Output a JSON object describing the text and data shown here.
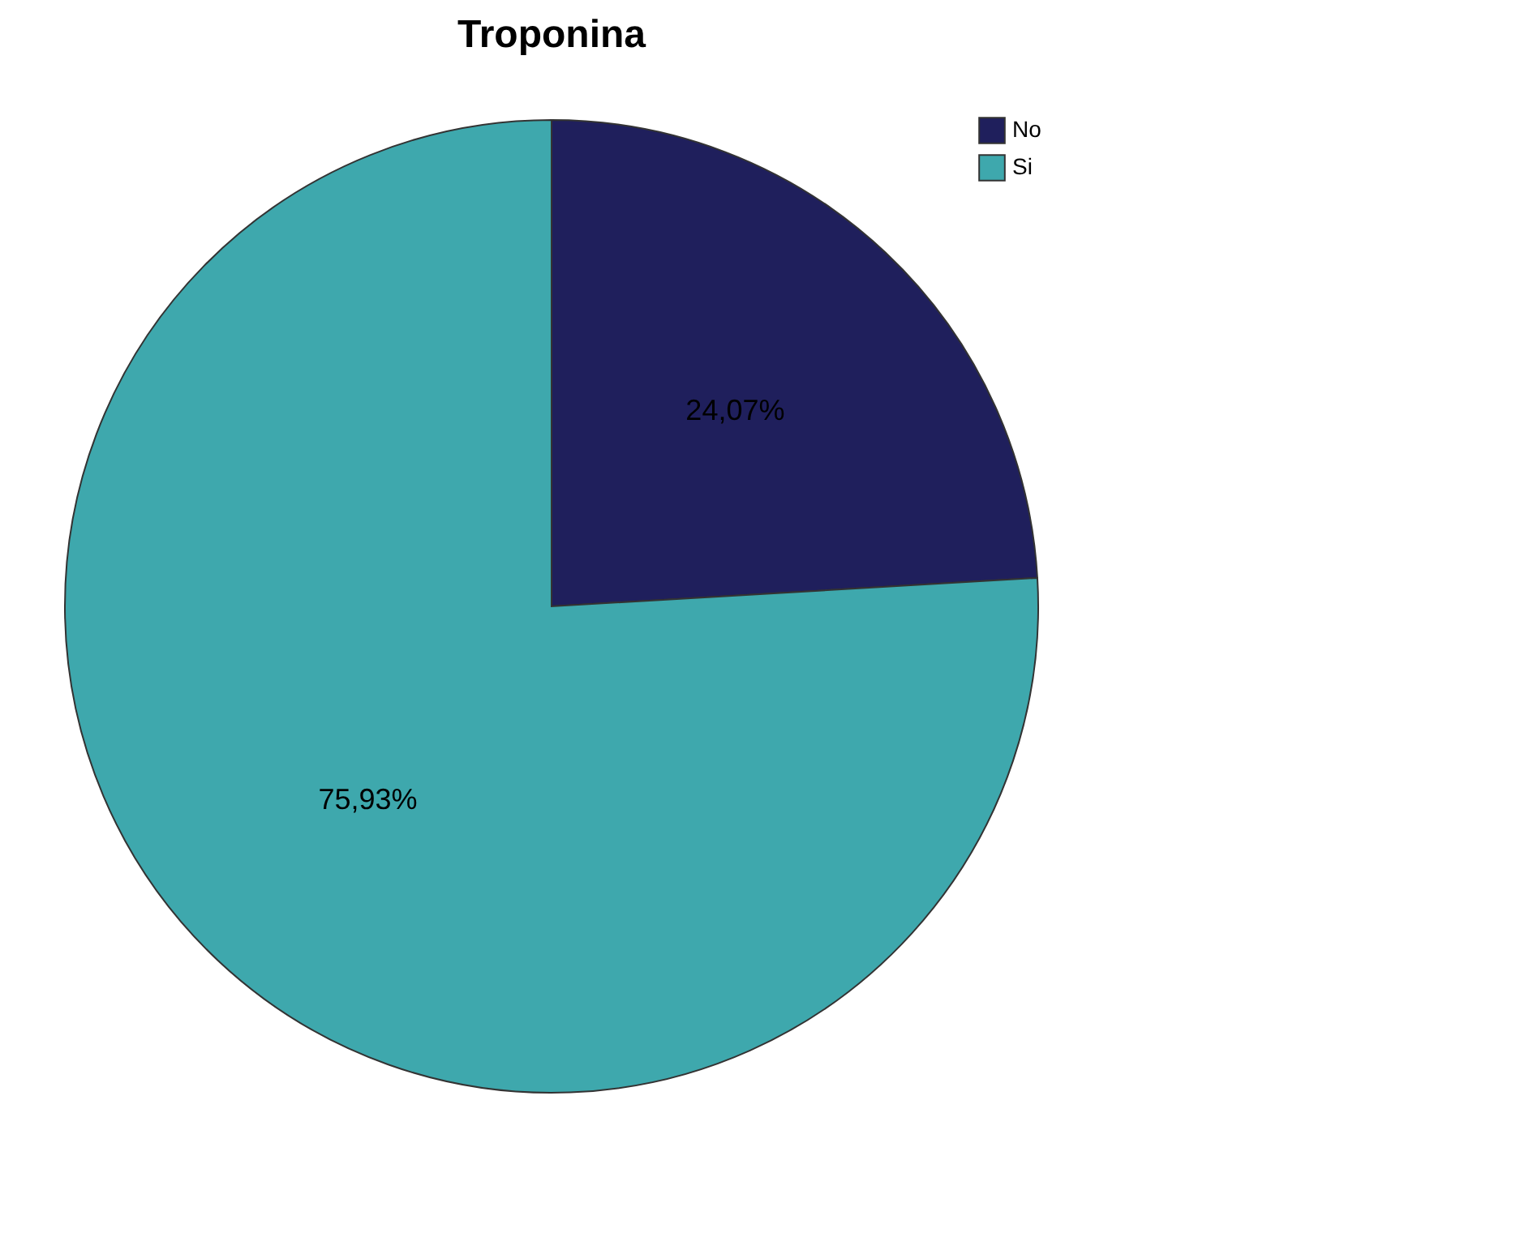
{
  "chart_data": {
    "type": "pie",
    "title": "Troponina",
    "categories": [
      "No",
      "Si"
    ],
    "values": [
      24.07,
      75.93
    ],
    "colors": [
      "#1f1f5c",
      "#3ea8ad"
    ],
    "value_labels": [
      "24,07%",
      "75,93%"
    ],
    "legend": "top right"
  }
}
